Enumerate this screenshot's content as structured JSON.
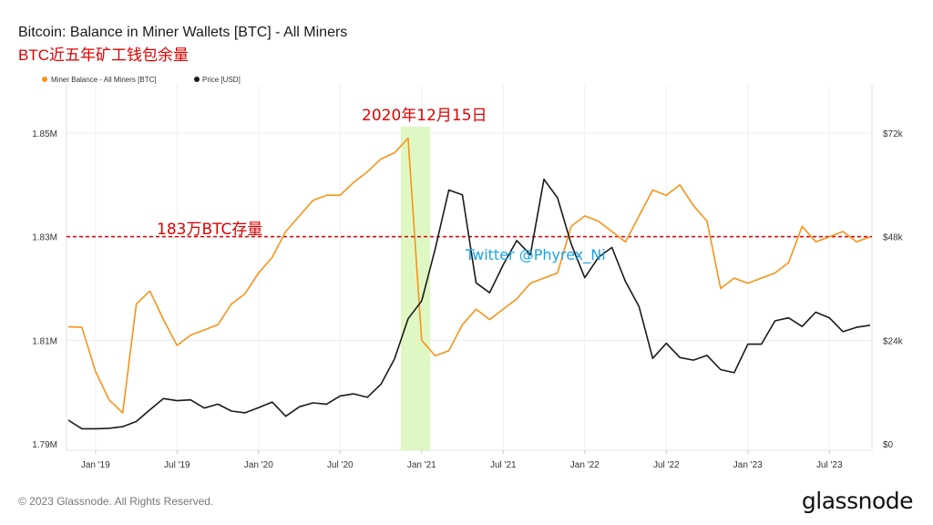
{
  "header": {
    "title": "Bitcoin: Balance in Miner Wallets [BTC] - All Miners",
    "subtitle": "BTC近五年矿工钱包余量"
  },
  "footer": {
    "copyright": "© 2023 Glassnode. All Rights Reserved.",
    "brand": "glassnode"
  },
  "chart_data": {
    "type": "line",
    "title": "Bitcoin: Balance in Miner Wallets [BTC] - All Miners",
    "legend": {
      "placement": "top-left"
    },
    "colors": {
      "miner_balance": "#f7931a",
      "price": "#1a1a1a",
      "highlight": "#d9f7b8",
      "reference": "#e00000",
      "watermark": "#1aa3e8"
    },
    "x_ticks": [
      "Jan '19",
      "Jul '19",
      "Jan '20",
      "Jul '20",
      "Jan '21",
      "Jul '21",
      "Jan '22",
      "Jul '22",
      "Jan '23",
      "Jul '23"
    ],
    "x_range": [
      "2018-11",
      "2023-10"
    ],
    "y_left": {
      "ticks": [
        "1.79M",
        "1.81M",
        "1.83M",
        "1.85M"
      ],
      "range": [
        1.79,
        1.85
      ],
      "unit": "M BTC"
    },
    "y_right": {
      "ticks": [
        "$0",
        "$24k",
        "$48k",
        "$72k"
      ],
      "range": [
        0,
        72
      ]
    },
    "series": [
      {
        "name": "Miner Balance - All Miners [BTC]",
        "axis": "left",
        "points": [
          [
            "2018-11",
            1.8126
          ],
          [
            "2018-12",
            1.8125
          ],
          [
            "2019-01",
            1.804
          ],
          [
            "2019-02",
            1.7985
          ],
          [
            "2019-03",
            1.796
          ],
          [
            "2019-04",
            1.817
          ],
          [
            "2019-05",
            1.8195
          ],
          [
            "2019-06",
            1.814
          ],
          [
            "2019-07",
            1.809
          ],
          [
            "2019-08",
            1.811
          ],
          [
            "2019-09",
            1.812
          ],
          [
            "2019-10",
            1.813
          ],
          [
            "2019-11",
            1.817
          ],
          [
            "2019-12",
            1.819
          ],
          [
            "2020-01",
            1.823
          ],
          [
            "2020-02",
            1.826
          ],
          [
            "2020-03",
            1.831
          ],
          [
            "2020-04",
            1.834
          ],
          [
            "2020-05",
            1.837
          ],
          [
            "2020-06",
            1.838
          ],
          [
            "2020-07",
            1.838
          ],
          [
            "2020-08",
            1.8405
          ],
          [
            "2020-09",
            1.8425
          ],
          [
            "2020-10",
            1.845
          ],
          [
            "2020-11",
            1.8462
          ],
          [
            "2020-12",
            1.849
          ],
          [
            "2021-01",
            1.81
          ],
          [
            "2021-02",
            1.807
          ],
          [
            "2021-03",
            1.808
          ],
          [
            "2021-04",
            1.813
          ],
          [
            "2021-05",
            1.816
          ],
          [
            "2021-06",
            1.814
          ],
          [
            "2021-07",
            1.816
          ],
          [
            "2021-08",
            1.818
          ],
          [
            "2021-09",
            1.821
          ],
          [
            "2021-10",
            1.822
          ],
          [
            "2021-11",
            1.823
          ],
          [
            "2021-12",
            1.832
          ],
          [
            "2022-01",
            1.834
          ],
          [
            "2022-02",
            1.833
          ],
          [
            "2022-03",
            1.831
          ],
          [
            "2022-04",
            1.829
          ],
          [
            "2022-05",
            1.834
          ],
          [
            "2022-06",
            1.839
          ],
          [
            "2022-07",
            1.838
          ],
          [
            "2022-08",
            1.84
          ],
          [
            "2022-09",
            1.836
          ],
          [
            "2022-10",
            1.833
          ],
          [
            "2022-11",
            1.82
          ],
          [
            "2022-12",
            1.822
          ],
          [
            "2023-01",
            1.821
          ],
          [
            "2023-02",
            1.822
          ],
          [
            "2023-03",
            1.823
          ],
          [
            "2023-04",
            1.825
          ],
          [
            "2023-05",
            1.832
          ],
          [
            "2023-06",
            1.829
          ],
          [
            "2023-07",
            1.83
          ],
          [
            "2023-08",
            1.831
          ],
          [
            "2023-09",
            1.829
          ],
          [
            "2023-10",
            1.83
          ]
        ]
      },
      {
        "name": "Price [USD]",
        "axis": "right",
        "points": [
          [
            "2018-11",
            5.5
          ],
          [
            "2018-12",
            3.5
          ],
          [
            "2019-01",
            3.5
          ],
          [
            "2019-02",
            3.6
          ],
          [
            "2019-03",
            4.0
          ],
          [
            "2019-04",
            5.2
          ],
          [
            "2019-05",
            7.9
          ],
          [
            "2019-06",
            10.5
          ],
          [
            "2019-07",
            10.0
          ],
          [
            "2019-08",
            10.2
          ],
          [
            "2019-09",
            8.3
          ],
          [
            "2019-10",
            9.2
          ],
          [
            "2019-11",
            7.6
          ],
          [
            "2019-12",
            7.2
          ],
          [
            "2020-01",
            8.4
          ],
          [
            "2020-02",
            9.7
          ],
          [
            "2020-03",
            6.4
          ],
          [
            "2020-04",
            8.6
          ],
          [
            "2020-05",
            9.5
          ],
          [
            "2020-06",
            9.2
          ],
          [
            "2020-07",
            11.1
          ],
          [
            "2020-08",
            11.6
          ],
          [
            "2020-09",
            10.8
          ],
          [
            "2020-10",
            13.8
          ],
          [
            "2020-11",
            19.7
          ],
          [
            "2020-12",
            29.0
          ],
          [
            "2021-01",
            33.1
          ],
          [
            "2021-02",
            45.2
          ],
          [
            "2021-03",
            58.8
          ],
          [
            "2021-04",
            57.7
          ],
          [
            "2021-05",
            37.3
          ],
          [
            "2021-06",
            35.0
          ],
          [
            "2021-07",
            41.5
          ],
          [
            "2021-08",
            47.1
          ],
          [
            "2021-09",
            43.8
          ],
          [
            "2021-10",
            61.3
          ],
          [
            "2021-11",
            57.0
          ],
          [
            "2021-12",
            46.3
          ],
          [
            "2022-01",
            38.5
          ],
          [
            "2022-02",
            43.2
          ],
          [
            "2022-03",
            45.5
          ],
          [
            "2022-04",
            37.6
          ],
          [
            "2022-05",
            31.8
          ],
          [
            "2022-06",
            19.8
          ],
          [
            "2022-07",
            23.3
          ],
          [
            "2022-08",
            20.0
          ],
          [
            "2022-09",
            19.4
          ],
          [
            "2022-10",
            20.5
          ],
          [
            "2022-11",
            17.2
          ],
          [
            "2022-12",
            16.5
          ],
          [
            "2023-01",
            23.1
          ],
          [
            "2023-02",
            23.1
          ],
          [
            "2023-03",
            28.5
          ],
          [
            "2023-04",
            29.2
          ],
          [
            "2023-05",
            27.2
          ],
          [
            "2023-06",
            30.5
          ],
          [
            "2023-07",
            29.2
          ],
          [
            "2023-08",
            26.0
          ],
          [
            "2023-09",
            27.0
          ],
          [
            "2023-10",
            27.5
          ]
        ]
      }
    ],
    "annotations": {
      "highlight_label": "2020年12月15日",
      "highlight_range": [
        "2020-11-15",
        "2021-01-20"
      ],
      "reference_label": "183万BTC存量",
      "reference_value": 1.83,
      "watermark": "Twitter @Phyrex_Ni"
    }
  }
}
